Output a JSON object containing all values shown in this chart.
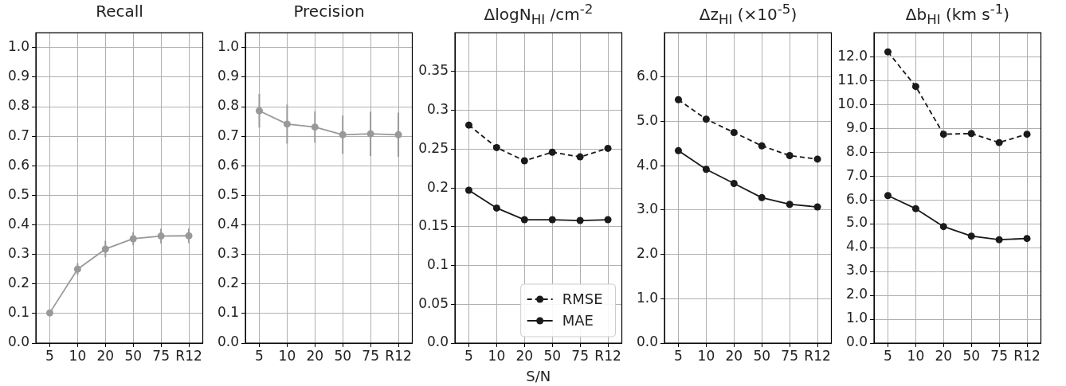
{
  "chart_data": [
    {
      "type": "line",
      "title": "Recall",
      "categories": [
        "5",
        "10",
        "20",
        "50",
        "75",
        "R12"
      ],
      "values": [
        0.102,
        0.25,
        0.318,
        0.353,
        0.362,
        0.363
      ],
      "errors": [
        null,
        0.02,
        0.028,
        0.022,
        0.025,
        0.025
      ],
      "color": "#999999",
      "marker": "circle",
      "line_style": "solid",
      "grid": true,
      "ylim": [
        0,
        1.05
      ],
      "yticks": [
        {
          "value": 0,
          "label": "0.0"
        },
        {
          "value": 0.1,
          "label": "0.1"
        },
        {
          "value": 0.2,
          "label": "0.2"
        },
        {
          "value": 0.3,
          "label": "0.3"
        },
        {
          "value": 0.4,
          "label": "0.4"
        },
        {
          "value": 0.5,
          "label": "0.5"
        },
        {
          "value": 0.6,
          "label": "0.6"
        },
        {
          "value": 0.7,
          "label": "0.7"
        },
        {
          "value": 0.8,
          "label": "0.8"
        },
        {
          "value": 0.9,
          "label": "0.9"
        },
        {
          "value": 1,
          "label": "1.0"
        }
      ]
    },
    {
      "type": "line",
      "title": "Precision",
      "categories": [
        "5",
        "10",
        "20",
        "50",
        "75",
        "R12"
      ],
      "values": [
        0.786,
        0.741,
        0.731,
        0.705,
        0.708,
        0.705
      ],
      "errors": [
        0.057,
        0.066,
        0.053,
        0.065,
        0.075,
        0.075
      ],
      "color": "#999999",
      "marker": "circle",
      "line_style": "solid",
      "grid": true,
      "ylim": [
        0,
        1.05
      ],
      "yticks": [
        {
          "value": 0,
          "label": "0.0"
        },
        {
          "value": 0.1,
          "label": "0.1"
        },
        {
          "value": 0.2,
          "label": "0.2"
        },
        {
          "value": 0.3,
          "label": "0.3"
        },
        {
          "value": 0.4,
          "label": "0.4"
        },
        {
          "value": 0.5,
          "label": "0.5"
        },
        {
          "value": 0.6,
          "label": "0.6"
        },
        {
          "value": 0.7,
          "label": "0.7"
        },
        {
          "value": 0.8,
          "label": "0.8"
        },
        {
          "value": 0.9,
          "label": "0.9"
        },
        {
          "value": 1,
          "label": "1.0"
        }
      ]
    },
    {
      "type": "line",
      "title": "ΔlogN$_{HI}$ /cm$^{-2}$",
      "xlabel": "S/N",
      "categories": [
        "5",
        "10",
        "20",
        "50",
        "75",
        "R12"
      ],
      "marker": "circle",
      "grid": true,
      "legend": "bottom right",
      "ylim": [
        0,
        0.4
      ],
      "yticks": [
        {
          "value": 0,
          "label": "0.0"
        },
        0.05,
        0.1,
        0.15,
        0.2,
        0.25,
        0.3,
        0.35
      ],
      "series": [
        {
          "name": "RMSE",
          "color": "#1a1a1a",
          "line_style": "dashed",
          "values": [
            0.281,
            0.252,
            0.235,
            0.246,
            0.24,
            0.251
          ]
        },
        {
          "name": "MAE",
          "color": "#1a1a1a",
          "line_style": "solid",
          "values": [
            0.197,
            0.174,
            0.159,
            0.159,
            0.158,
            0.159
          ]
        }
      ]
    },
    {
      "type": "line",
      "title": "Δz$_{HI}$ (×10$^{-5}$)",
      "categories": [
        "5",
        "10",
        "20",
        "50",
        "75",
        "R12"
      ],
      "marker": "circle",
      "grid": true,
      "ylim": [
        0,
        7
      ],
      "yticks": [
        {
          "value": 0,
          "label": "0.0"
        },
        {
          "value": 1,
          "label": "1.0"
        },
        {
          "value": 2,
          "label": "2.0"
        },
        {
          "value": 3,
          "label": "3.0"
        },
        {
          "value": 4,
          "label": "4.0"
        },
        {
          "value": 5,
          "label": "5.0"
        },
        {
          "value": 6,
          "label": "6.0"
        }
      ],
      "series": [
        {
          "color": "#1a1a1a",
          "line_style": "dashed",
          "values": [
            5.49,
            5.05,
            4.75,
            4.45,
            4.23,
            4.15
          ]
        },
        {
          "color": "#1a1a1a",
          "line_style": "solid",
          "values": [
            4.34,
            3.92,
            3.6,
            3.28,
            3.13,
            3.07
          ]
        }
      ]
    },
    {
      "type": "line",
      "title": "Δb$_{HI}$ (km s$^{-1}$)",
      "categories": [
        "5",
        "10",
        "20",
        "50",
        "75",
        "R12"
      ],
      "marker": "circle",
      "grid": true,
      "ylim": [
        0,
        13
      ],
      "yticks": [
        {
          "value": 0,
          "label": "0.0"
        },
        {
          "value": 1,
          "label": "1.0"
        },
        {
          "value": 2,
          "label": "2.0"
        },
        {
          "value": 3,
          "label": "3.0"
        },
        {
          "value": 4,
          "label": "4.0"
        },
        {
          "value": 5,
          "label": "5.0"
        },
        {
          "value": 6,
          "label": "6.0"
        },
        {
          "value": 7,
          "label": "7.0"
        },
        {
          "value": 8,
          "label": "8.0"
        },
        {
          "value": 9,
          "label": "9.0"
        },
        {
          "value": 10,
          "label": "10.0"
        },
        {
          "value": 11,
          "label": "11.0"
        },
        {
          "value": 12,
          "label": "12.0"
        }
      ],
      "series": [
        {
          "color": "#1a1a1a",
          "line_style": "dashed",
          "values": [
            12.2,
            10.75,
            8.75,
            8.78,
            8.4,
            8.75
          ]
        },
        {
          "color": "#1a1a1a",
          "line_style": "solid",
          "values": [
            6.18,
            5.63,
            4.88,
            4.48,
            4.33,
            4.38
          ]
        }
      ]
    }
  ]
}
